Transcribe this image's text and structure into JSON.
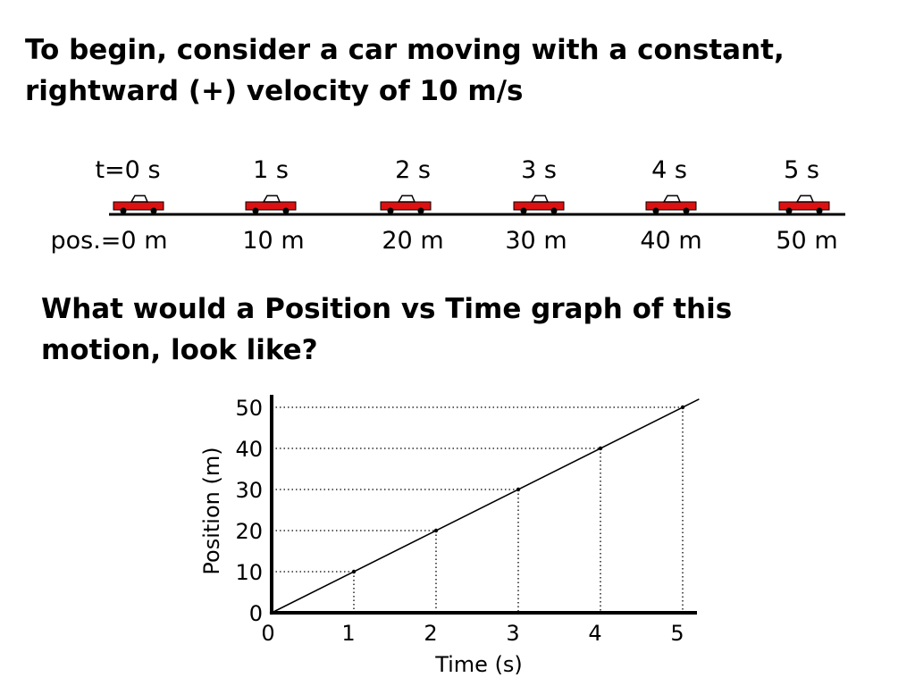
{
  "intro": {
    "line1": "To begin, consider a car moving with a constant,",
    "line2": "rightward (+) velocity of 10 m/s"
  },
  "question": {
    "line1": "What would a  Position vs Time graph of this",
    "line2": "motion, look like?"
  },
  "motion_diagram": {
    "car_color": "#dd1111",
    "frames": [
      {
        "time_label": "t=0 s",
        "position_label": "pos.=0 m"
      },
      {
        "time_label": "1 s",
        "position_label": "10 m"
      },
      {
        "time_label": "2 s",
        "position_label": "20 m"
      },
      {
        "time_label": "3 s",
        "position_label": "30 m"
      },
      {
        "time_label": "4 s",
        "position_label": "40 m"
      },
      {
        "time_label": "5 s",
        "position_label": "50 m"
      }
    ]
  },
  "chart_data": {
    "type": "line",
    "title": "",
    "xlabel": "Time (s)",
    "ylabel": "Position (m)",
    "xlim": [
      0,
      5.2
    ],
    "ylim": [
      0,
      52
    ],
    "x_ticks": [
      0,
      1,
      2,
      3,
      4,
      5
    ],
    "y_ticks": [
      0,
      10,
      20,
      30,
      40,
      50
    ],
    "grid": "dotted guide lines at each data point",
    "series": [
      {
        "x": [
          0,
          1,
          2,
          3,
          4,
          5
        ],
        "y": [
          0,
          10,
          20,
          30,
          40,
          50
        ]
      }
    ]
  }
}
